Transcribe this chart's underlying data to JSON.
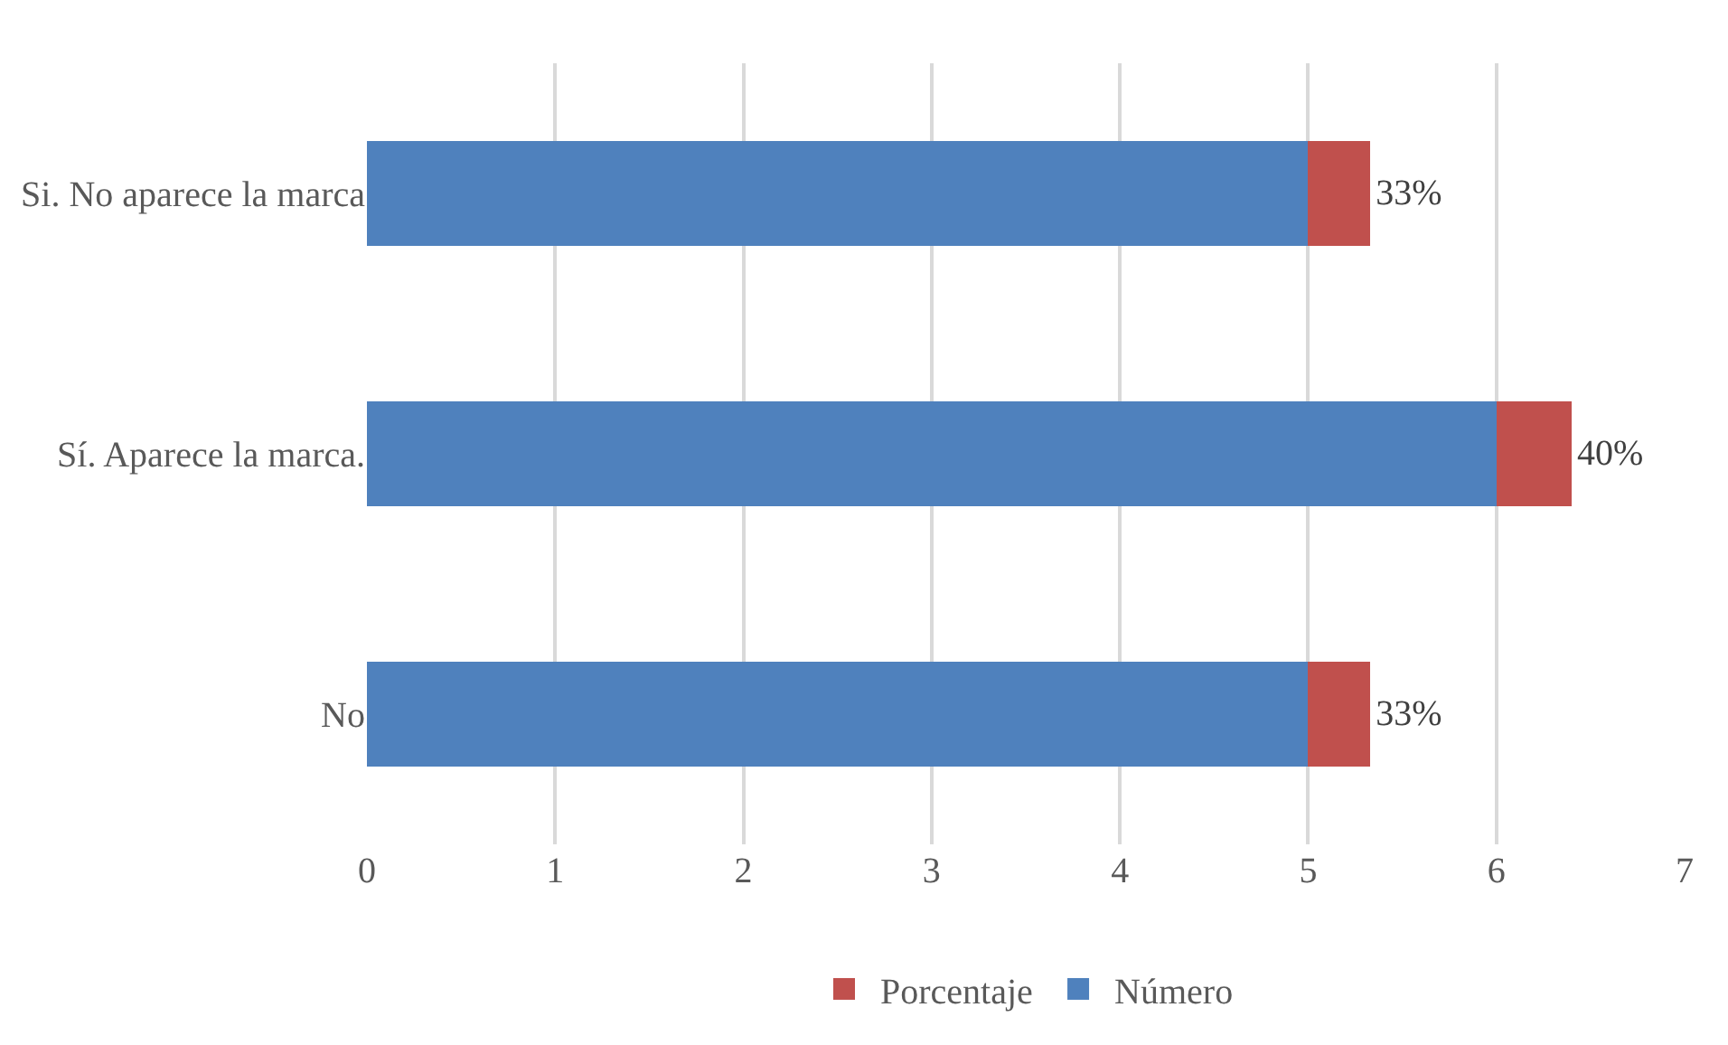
{
  "chart_data": {
    "type": "bar",
    "orientation": "horizontal",
    "stacked": true,
    "categories": [
      "Si. No aparece la marca",
      "Sí. Aparece la marca.",
      "No"
    ],
    "series": [
      {
        "name": "Número",
        "color": "#4f81bd",
        "values": [
          5,
          6,
          5
        ]
      },
      {
        "name": "Porcentaje",
        "color": "#c0504d",
        "values": [
          0.33,
          0.4,
          0.33
        ],
        "value_labels": [
          "33%",
          "40%",
          "33%"
        ]
      }
    ],
    "xlim": [
      0,
      7
    ],
    "xticks": [
      0,
      1,
      2,
      3,
      4,
      5,
      6,
      7
    ],
    "grid": "x",
    "legend": "bottom"
  }
}
